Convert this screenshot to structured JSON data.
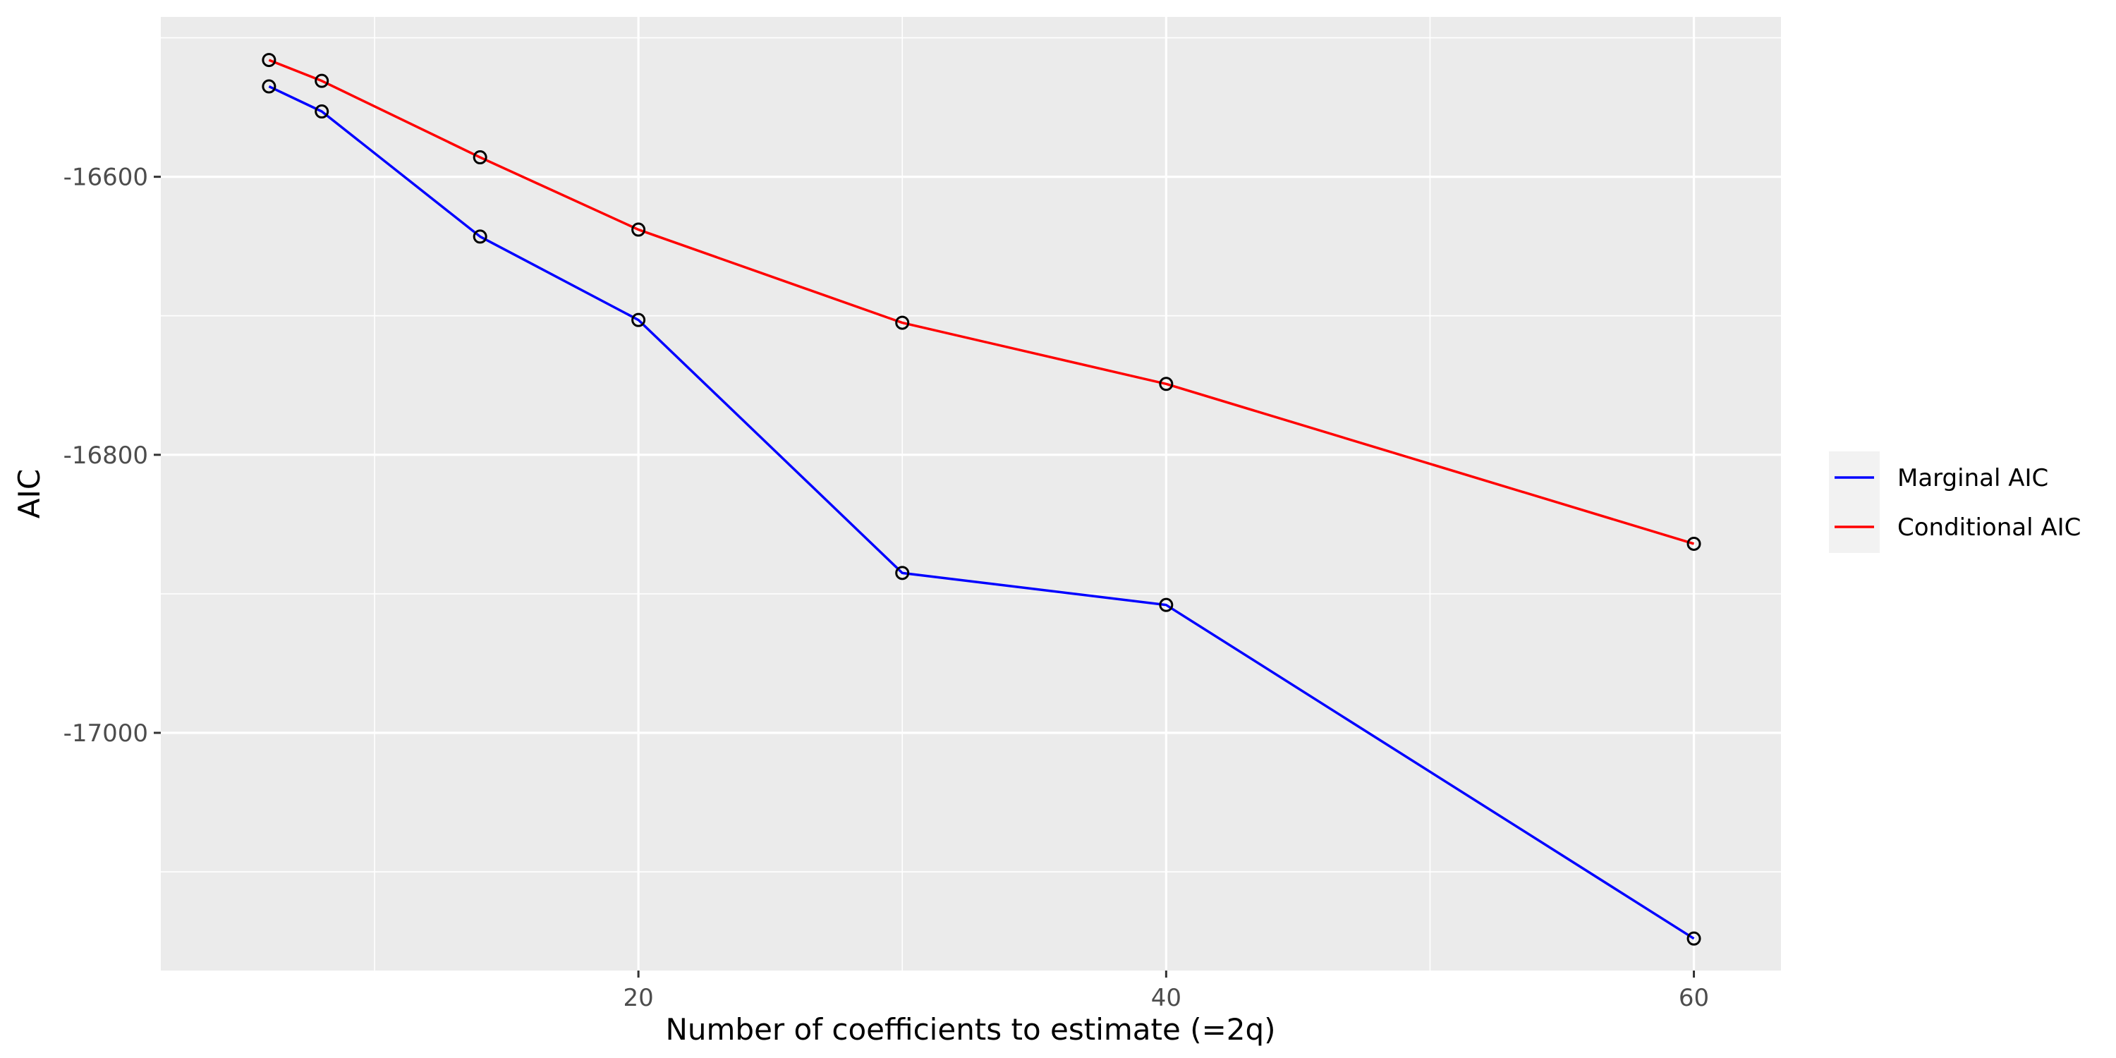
{
  "chart_data": {
    "type": "line",
    "title": "",
    "xlabel": "Number of coefficients to estimate (=2q)",
    "ylabel": "AIC",
    "xlim": [
      1.9,
      63.3
    ],
    "ylim": [
      -17171,
      -16485
    ],
    "x_ticks": [
      20,
      40,
      60
    ],
    "x_tick_labels": [
      "20",
      "40",
      "60"
    ],
    "x_minor_ticks": [
      10,
      30,
      50
    ],
    "y_ticks": [
      -16600,
      -16800,
      -17000
    ],
    "y_tick_labels": [
      "-16600",
      "-16800",
      "-17000"
    ],
    "y_minor_ticks": [
      -16500,
      -16700,
      -16900,
      -17100
    ],
    "grid": true,
    "legend_position": "right",
    "x": [
      6,
      8,
      14,
      20,
      30,
      40,
      60
    ],
    "series": [
      {
        "name": "Marginal AIC",
        "color": "#0000ff",
        "values": [
          -16535,
          -16553,
          -16643,
          -16703,
          -16885,
          -16908,
          -17148
        ]
      },
      {
        "name": "Conditional AIC",
        "color": "#ff0000",
        "values": [
          -16516,
          -16531,
          -16586,
          -16638,
          -16705,
          -16749,
          -16864
        ]
      }
    ]
  }
}
